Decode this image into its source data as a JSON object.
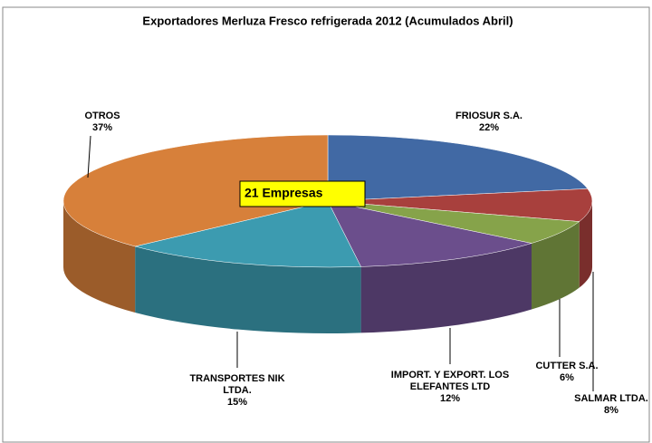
{
  "chart_data": {
    "type": "pie3d",
    "title": "Exportadores Merluza Fresco refrigerada 2012 (Acumulados Abril)",
    "categories": [
      "FRIOSUR S.A.",
      "SALMAR LTDA.",
      "CUTTER S.A.",
      "IMPORT. Y EXPORT. LOS ELEFANTES LTD",
      "TRANSPORTES NIK LTDA.",
      "OTROS"
    ],
    "values": [
      22,
      8,
      6,
      12,
      15,
      37
    ],
    "value_labels": [
      "22%",
      "8%",
      "6%",
      "12%",
      "15%",
      "37%"
    ],
    "colors": [
      "#4169a4",
      "#a8403d",
      "#86a34a",
      "#6b4e8c",
      "#3c9bb0",
      "#d7803a"
    ],
    "annotation": "21 Empresas"
  }
}
